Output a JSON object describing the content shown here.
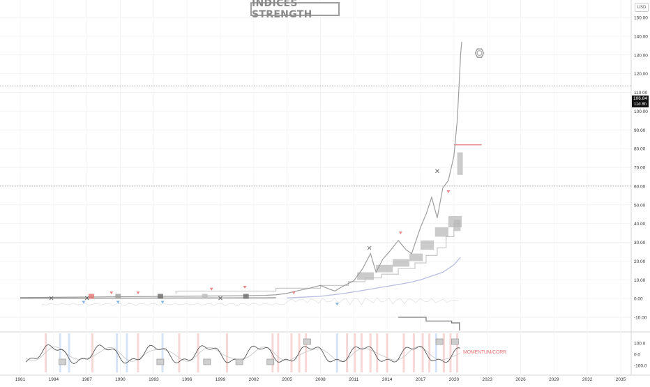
{
  "chart_data": [
    {
      "type": "line",
      "title": "INDICES STRENGTH",
      "currency": "USD",
      "x_tick_labels": [
        "1981",
        "1984",
        "1987",
        "1990",
        "1993",
        "1996",
        "1999",
        "2002",
        "2005",
        "2008",
        "2011",
        "2014",
        "2017",
        "2020",
        "2023",
        "2026",
        "2029",
        "2032",
        "2035"
      ],
      "y_tick_labels": [
        "150.00",
        "140.00",
        "130.00",
        "120.00",
        "110.00",
        "100.00",
        "90.00",
        "80.00",
        "70.00",
        "60.00",
        "50.00",
        "40.00",
        "30.00",
        "20.00",
        "10.00",
        "0.00",
        "-10.00"
      ],
      "ylim": [
        -10,
        150
      ],
      "xlim": [
        1981,
        2035
      ],
      "last_price_label": "106.84",
      "countdown_label": "11d 8h",
      "series": [
        {
          "values_x": [
            1981.0,
            1983.0,
            1985.0,
            1987.0,
            1989.0,
            1991.0,
            1993.0,
            1995.0,
            1997.0,
            1999.0,
            2001.0,
            2003.0,
            2004.0,
            2005.0,
            2006.0,
            2007.0,
            2008.0,
            2008.8,
            2009.3,
            2010.0,
            2011.0,
            2011.8,
            2012.5,
            2013.0,
            2013.6,
            2014.2,
            2015.0,
            2015.7,
            2016.2,
            2017.0,
            2017.5,
            2018.0,
            2018.5,
            2019.0,
            2019.5,
            2020.0,
            2020.3,
            2020.5,
            2020.6,
            2020.7
          ],
          "values_y": [
            0.5,
            0.6,
            0.7,
            0.8,
            0.9,
            1.0,
            1.1,
            1.2,
            1.3,
            1.4,
            1.5,
            1.7,
            2.0,
            2.8,
            4.2,
            5.5,
            7.0,
            5.0,
            4.0,
            6.5,
            9.5,
            16.0,
            24.0,
            14.0,
            21.0,
            25.0,
            31.0,
            26.0,
            24.0,
            38.0,
            45.0,
            54.0,
            43.0,
            59.0,
            63.0,
            76.0,
            95.0,
            118.0,
            130.0,
            137.0
          ],
          "color": "#9e9e9e"
        },
        {
          "name_shown": "",
          "values_x": [
            2005.0,
            2008.0,
            2010.0,
            2012.0,
            2014.0,
            2016.0,
            2017.0,
            2018.0,
            2019.0,
            2020.0,
            2020.6
          ],
          "values_y": [
            0.3,
            1.2,
            2.6,
            4.5,
            6.5,
            8.5,
            10.0,
            12.0,
            14.0,
            18.0,
            22.0
          ],
          "color": "#b8bde0"
        }
      ],
      "horizontal_dotted_levels": [
        113.5,
        60.0
      ],
      "red_level": 82,
      "markers_x_cross": [
        [
          1983.8,
          0.2
        ],
        [
          1987.0,
          0.2
        ],
        [
          1999.0,
          0.2
        ],
        [
          2012.4,
          27.0
        ],
        [
          2018.5,
          68.0
        ]
      ],
      "oscillator": {
        "label": "MOMENTUM/CORR",
        "y_tick_labels": [
          "100.0",
          "0.0",
          "-100.0"
        ],
        "ylim": [
          -100,
          100
        ]
      },
      "grid": true,
      "colors": {
        "price": "#8a8a8a",
        "accent_red": "#e57373",
        "accent_blue": "#6fa8dc",
        "axis_text": "#333333"
      }
    }
  ]
}
